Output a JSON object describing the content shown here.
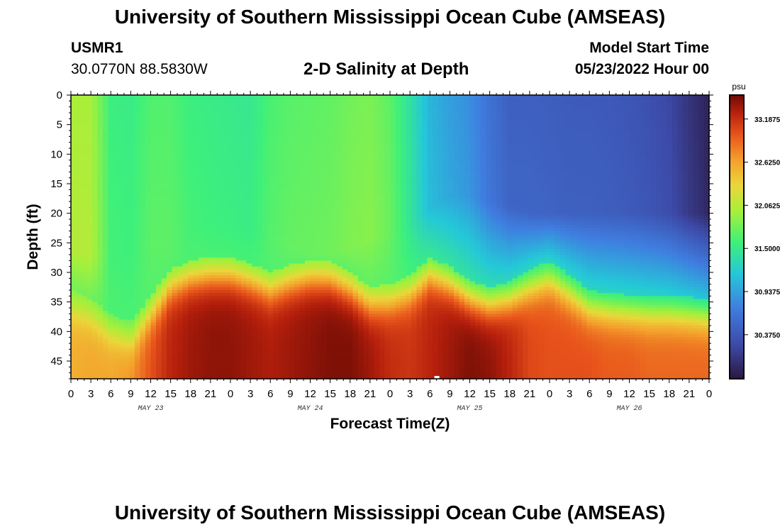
{
  "header": {
    "title": "University of Southern Mississippi Ocean Cube (AMSEAS)",
    "station_id": "USMR1",
    "station_coords": "30.0770N  88.5830W",
    "model_start_label": "Model Start Time",
    "model_start_value": "05/23/2022 Hour 00"
  },
  "footer": {
    "title": "University of Southern Mississippi Ocean Cube (AMSEAS)"
  },
  "chart_data": {
    "type": "heatmap",
    "title": "2-D Salinity at Depth",
    "xlabel": "Forecast Time(Z)",
    "ylabel": "Depth (ft)",
    "x_range_hours": [
      0,
      96
    ],
    "y_range_ft": [
      0,
      48
    ],
    "x_tick_step_hours": 3,
    "x_tick_labels": [
      "0",
      "3",
      "6",
      "9",
      "12",
      "15",
      "18",
      "21",
      "0",
      "3",
      "6",
      "9",
      "12",
      "15",
      "18",
      "21",
      "0",
      "3",
      "6",
      "9",
      "12",
      "15",
      "18",
      "21",
      "0",
      "3",
      "6",
      "9",
      "12",
      "15",
      "18",
      "21",
      "0"
    ],
    "y_ticks": [
      0,
      5,
      10,
      15,
      20,
      25,
      30,
      35,
      40,
      45
    ],
    "y_tick_labels": [
      "0",
      "5",
      "10",
      "15",
      "20",
      "25",
      "30",
      "35",
      "40",
      "45"
    ],
    "date_labels": [
      {
        "label": "MAY 23",
        "hour": 12
      },
      {
        "label": "MAY 24",
        "hour": 36
      },
      {
        "label": "MAY 25",
        "hour": 60
      },
      {
        "label": "MAY 26",
        "hour": 84
      }
    ],
    "colorbar": {
      "unit": "psu",
      "min": 29.8,
      "max": 33.5,
      "tick_labels": [
        "33.1875",
        "32.6250",
        "32.0625",
        "31.5000",
        "30.9375",
        "30.3750"
      ],
      "tick_values": [
        33.1875,
        32.625,
        32.0625,
        31.5,
        30.9375,
        30.375
      ],
      "colors": [
        "#2a1740",
        "#3d4aa8",
        "#3f7ee0",
        "#24c8d8",
        "#3ef07a",
        "#a6f03a",
        "#ebd63a",
        "#f4a02c",
        "#e8541b",
        "#b51f0c",
        "#6e0c05"
      ],
      "color_stops": [
        0,
        0.12,
        0.25,
        0.37,
        0.48,
        0.59,
        0.68,
        0.77,
        0.86,
        0.94,
        1.0
      ]
    },
    "surface_salinity": [
      [
        0,
        32.0
      ],
      [
        3,
        32.0
      ],
      [
        6,
        31.55
      ],
      [
        9,
        31.52
      ],
      [
        12,
        31.65
      ],
      [
        15,
        31.65
      ],
      [
        18,
        31.55
      ],
      [
        21,
        31.52
      ],
      [
        24,
        31.5
      ],
      [
        27,
        31.48
      ],
      [
        30,
        31.62
      ],
      [
        33,
        31.68
      ],
      [
        36,
        31.7
      ],
      [
        39,
        31.72
      ],
      [
        42,
        31.78
      ],
      [
        45,
        31.82
      ],
      [
        48,
        31.7
      ],
      [
        51,
        31.4
      ],
      [
        54,
        31.05
      ],
      [
        57,
        30.92
      ],
      [
        60,
        30.82
      ],
      [
        63,
        30.6
      ],
      [
        66,
        30.45
      ],
      [
        69,
        30.45
      ],
      [
        72,
        30.43
      ],
      [
        75,
        30.4
      ],
      [
        78,
        30.4
      ],
      [
        81,
        30.38
      ],
      [
        84,
        30.35
      ],
      [
        87,
        30.3
      ],
      [
        90,
        30.22
      ],
      [
        93,
        30.05
      ],
      [
        96,
        29.9
      ]
    ],
    "upper_mixed_depth_ft": [
      [
        0,
        26
      ],
      [
        3,
        27
      ],
      [
        6,
        27
      ],
      [
        9,
        27
      ],
      [
        12,
        26
      ],
      [
        15,
        25
      ],
      [
        18,
        22
      ],
      [
        21,
        22
      ],
      [
        24,
        22
      ],
      [
        27,
        23
      ],
      [
        30,
        25
      ],
      [
        33,
        26
      ],
      [
        36,
        27
      ],
      [
        39,
        27
      ],
      [
        42,
        26
      ],
      [
        45,
        24
      ],
      [
        48,
        22
      ],
      [
        51,
        21
      ],
      [
        54,
        19
      ],
      [
        57,
        17
      ],
      [
        60,
        17
      ],
      [
        63,
        18
      ],
      [
        66,
        19
      ],
      [
        69,
        20
      ],
      [
        72,
        20
      ],
      [
        75,
        20
      ],
      [
        78,
        20
      ],
      [
        81,
        20
      ],
      [
        84,
        20
      ],
      [
        87,
        20
      ],
      [
        90,
        20
      ],
      [
        93,
        20
      ],
      [
        96,
        20
      ]
    ],
    "halocline_depth_ft": [
      [
        0,
        36
      ],
      [
        3,
        37.5
      ],
      [
        6,
        40
      ],
      [
        9,
        41.5
      ],
      [
        12,
        37
      ],
      [
        15,
        32.5
      ],
      [
        18,
        31
      ],
      [
        21,
        30.5
      ],
      [
        24,
        30.5
      ],
      [
        27,
        31.5
      ],
      [
        30,
        33
      ],
      [
        33,
        31.8
      ],
      [
        36,
        31
      ],
      [
        39,
        31.2
      ],
      [
        42,
        33
      ],
      [
        45,
        35.5
      ],
      [
        48,
        35
      ],
      [
        51,
        33.5
      ],
      [
        54,
        30.5
      ],
      [
        57,
        32
      ],
      [
        60,
        34.5
      ],
      [
        63,
        35.5
      ],
      [
        66,
        34.5
      ],
      [
        69,
        32.5
      ],
      [
        72,
        31.2
      ],
      [
        75,
        33.5
      ],
      [
        78,
        36
      ],
      [
        81,
        36.5
      ],
      [
        84,
        36.8
      ],
      [
        87,
        37
      ],
      [
        90,
        37
      ],
      [
        93,
        37.2
      ],
      [
        96,
        37.5
      ]
    ],
    "deep_salinity": [
      [
        0,
        32.55
      ],
      [
        3,
        32.6
      ],
      [
        6,
        32.6
      ],
      [
        9,
        32.7
      ],
      [
        12,
        33.0
      ],
      [
        15,
        33.25
      ],
      [
        18,
        33.35
      ],
      [
        21,
        33.4
      ],
      [
        24,
        33.4
      ],
      [
        27,
        33.35
      ],
      [
        30,
        33.3
      ],
      [
        33,
        33.35
      ],
      [
        36,
        33.4
      ],
      [
        39,
        33.45
      ],
      [
        42,
        33.45
      ],
      [
        45,
        33.35
      ],
      [
        48,
        33.2
      ],
      [
        51,
        33.15
      ],
      [
        54,
        33.25
      ],
      [
        57,
        33.35
      ],
      [
        60,
        33.45
      ],
      [
        63,
        33.4
      ],
      [
        66,
        33.25
      ],
      [
        69,
        33.05
      ],
      [
        72,
        33.0
      ],
      [
        75,
        33.0
      ],
      [
        78,
        33.0
      ],
      [
        81,
        32.95
      ],
      [
        84,
        32.95
      ],
      [
        87,
        32.9
      ],
      [
        90,
        32.9
      ],
      [
        93,
        32.9
      ],
      [
        96,
        32.9
      ]
    ],
    "marker_note": "small white marker near bottom at ~hour 55"
  }
}
